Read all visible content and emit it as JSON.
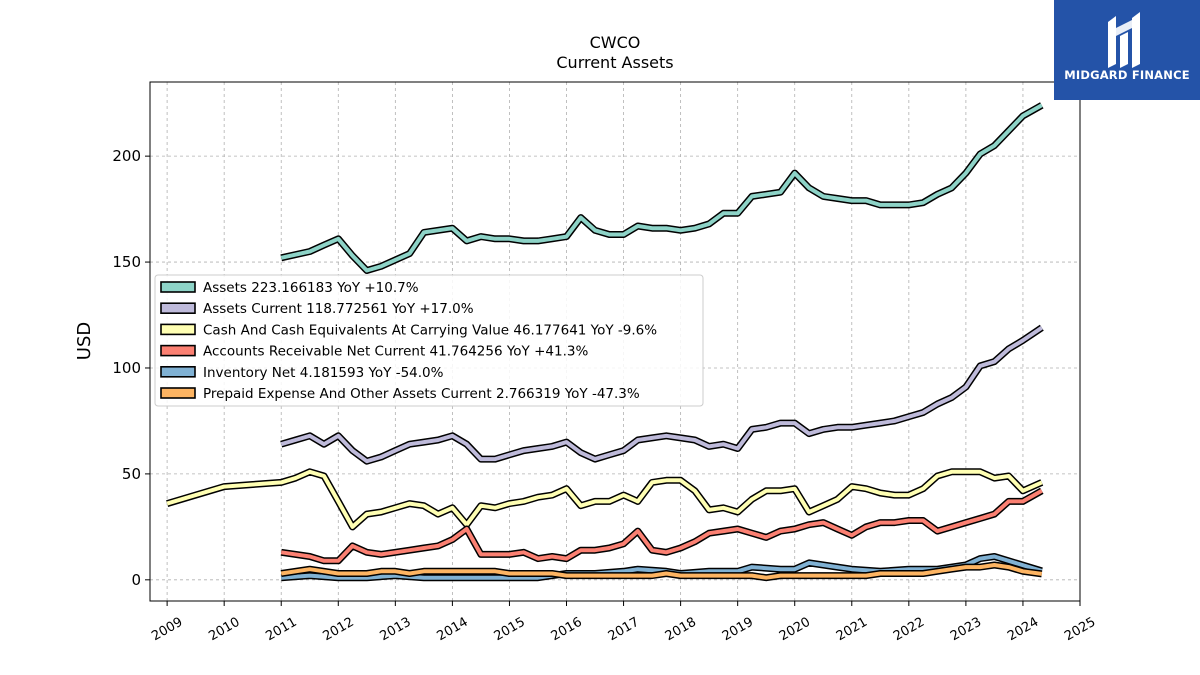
{
  "logo": {
    "text": "MIDGARD FINANCE"
  },
  "chart_data": {
    "type": "line",
    "title": "CWCO",
    "subtitle": "Current  Assets",
    "ylabel": "USD",
    "xlabel": "",
    "xlim": [
      2008.7,
      2025.0
    ],
    "ylim": [
      -10,
      235
    ],
    "yticks": [
      0,
      50,
      100,
      150,
      200
    ],
    "xticks": [
      "2009",
      "2010",
      "2011",
      "2012",
      "2013",
      "2014",
      "2015",
      "2016",
      "2017",
      "2018",
      "2019",
      "2020",
      "2021",
      "2022",
      "2023",
      "2024",
      "2025"
    ],
    "grid": true,
    "legend_position": "center-left",
    "series": [
      {
        "name": "Assets  223.166183 YoY +10.7%",
        "color": "#8dd3c7",
        "points": [
          [
            2011.0,
            152
          ],
          [
            2011.5,
            155
          ],
          [
            2011.75,
            158
          ],
          [
            2012.0,
            161
          ],
          [
            2012.25,
            153
          ],
          [
            2012.5,
            146
          ],
          [
            2012.75,
            148
          ],
          [
            2013.0,
            151
          ],
          [
            2013.25,
            154
          ],
          [
            2013.5,
            164
          ],
          [
            2013.75,
            165
          ],
          [
            2014.0,
            166
          ],
          [
            2014.25,
            160
          ],
          [
            2014.5,
            162
          ],
          [
            2014.75,
            161
          ],
          [
            2015.0,
            161
          ],
          [
            2015.25,
            160
          ],
          [
            2015.5,
            160
          ],
          [
            2015.75,
            161
          ],
          [
            2016.0,
            162
          ],
          [
            2016.25,
            171
          ],
          [
            2016.5,
            165
          ],
          [
            2016.75,
            163
          ],
          [
            2017.0,
            163
          ],
          [
            2017.25,
            167
          ],
          [
            2017.5,
            166
          ],
          [
            2017.75,
            166
          ],
          [
            2018.0,
            165
          ],
          [
            2018.25,
            166
          ],
          [
            2018.5,
            168
          ],
          [
            2018.75,
            173
          ],
          [
            2019.0,
            173
          ],
          [
            2019.25,
            181
          ],
          [
            2019.5,
            182
          ],
          [
            2019.75,
            183
          ],
          [
            2020.0,
            192
          ],
          [
            2020.25,
            185
          ],
          [
            2020.5,
            181
          ],
          [
            2020.75,
            180
          ],
          [
            2021.0,
            179
          ],
          [
            2021.25,
            179
          ],
          [
            2021.5,
            177
          ],
          [
            2021.75,
            177
          ],
          [
            2022.0,
            177
          ],
          [
            2022.25,
            178
          ],
          [
            2022.5,
            182
          ],
          [
            2022.75,
            185
          ],
          [
            2023.0,
            192
          ],
          [
            2023.25,
            201
          ],
          [
            2023.5,
            205
          ],
          [
            2023.75,
            212
          ],
          [
            2024.0,
            219
          ],
          [
            2024.33,
            224
          ]
        ]
      },
      {
        "name": "Assets Current  118.772561 YoY +17.0%",
        "color": "#bebada",
        "points": [
          [
            2011.0,
            64
          ],
          [
            2011.25,
            66
          ],
          [
            2011.5,
            68
          ],
          [
            2011.75,
            64
          ],
          [
            2012.0,
            68
          ],
          [
            2012.25,
            61
          ],
          [
            2012.5,
            56
          ],
          [
            2012.75,
            58
          ],
          [
            2013.0,
            61
          ],
          [
            2013.25,
            64
          ],
          [
            2013.5,
            65
          ],
          [
            2013.75,
            66
          ],
          [
            2014.0,
            68
          ],
          [
            2014.25,
            64
          ],
          [
            2014.5,
            57
          ],
          [
            2014.75,
            57
          ],
          [
            2015.0,
            59
          ],
          [
            2015.25,
            61
          ],
          [
            2015.5,
            62
          ],
          [
            2015.75,
            63
          ],
          [
            2016.0,
            65
          ],
          [
            2016.25,
            60
          ],
          [
            2016.5,
            57
          ],
          [
            2016.75,
            59
          ],
          [
            2017.0,
            61
          ],
          [
            2017.25,
            66
          ],
          [
            2017.5,
            67
          ],
          [
            2017.75,
            68
          ],
          [
            2018.0,
            67
          ],
          [
            2018.25,
            66
          ],
          [
            2018.5,
            63
          ],
          [
            2018.75,
            64
          ],
          [
            2019.0,
            62
          ],
          [
            2019.25,
            71
          ],
          [
            2019.5,
            72
          ],
          [
            2019.75,
            74
          ],
          [
            2020.0,
            74
          ],
          [
            2020.25,
            69
          ],
          [
            2020.5,
            71
          ],
          [
            2020.75,
            72
          ],
          [
            2021.0,
            72
          ],
          [
            2021.25,
            73
          ],
          [
            2021.5,
            74
          ],
          [
            2021.75,
            75
          ],
          [
            2022.0,
            77
          ],
          [
            2022.25,
            79
          ],
          [
            2022.5,
            83
          ],
          [
            2022.75,
            86
          ],
          [
            2023.0,
            91
          ],
          [
            2023.25,
            101
          ],
          [
            2023.5,
            103
          ],
          [
            2023.75,
            109
          ],
          [
            2024.0,
            113
          ],
          [
            2024.33,
            119
          ]
        ]
      },
      {
        "name": "Cash And Cash Equivalents At Carrying Value  46.177641 YoY -9.6%",
        "color": "#ffffb3",
        "points": [
          [
            2009.0,
            36
          ],
          [
            2009.5,
            40
          ],
          [
            2010.0,
            44
          ],
          [
            2010.5,
            45
          ],
          [
            2011.0,
            46
          ],
          [
            2011.25,
            48
          ],
          [
            2011.5,
            51
          ],
          [
            2011.75,
            49
          ],
          [
            2012.0,
            37
          ],
          [
            2012.25,
            25
          ],
          [
            2012.5,
            31
          ],
          [
            2012.75,
            32
          ],
          [
            2013.0,
            34
          ],
          [
            2013.25,
            36
          ],
          [
            2013.5,
            35
          ],
          [
            2013.75,
            31
          ],
          [
            2014.0,
            34
          ],
          [
            2014.25,
            26
          ],
          [
            2014.5,
            35
          ],
          [
            2014.75,
            34
          ],
          [
            2015.0,
            36
          ],
          [
            2015.25,
            37
          ],
          [
            2015.5,
            39
          ],
          [
            2015.75,
            40
          ],
          [
            2016.0,
            43
          ],
          [
            2016.25,
            35
          ],
          [
            2016.5,
            37
          ],
          [
            2016.75,
            37
          ],
          [
            2017.0,
            40
          ],
          [
            2017.25,
            37
          ],
          [
            2017.5,
            46
          ],
          [
            2017.75,
            47
          ],
          [
            2018.0,
            47
          ],
          [
            2018.25,
            42
          ],
          [
            2018.5,
            33
          ],
          [
            2018.75,
            34
          ],
          [
            2019.0,
            32
          ],
          [
            2019.25,
            38
          ],
          [
            2019.5,
            42
          ],
          [
            2019.75,
            42
          ],
          [
            2020.0,
            43
          ],
          [
            2020.25,
            32
          ],
          [
            2020.5,
            35
          ],
          [
            2020.75,
            38
          ],
          [
            2021.0,
            44
          ],
          [
            2021.25,
            43
          ],
          [
            2021.5,
            41
          ],
          [
            2021.75,
            40
          ],
          [
            2022.0,
            40
          ],
          [
            2022.25,
            43
          ],
          [
            2022.5,
            49
          ],
          [
            2022.75,
            51
          ],
          [
            2023.0,
            51
          ],
          [
            2023.25,
            51
          ],
          [
            2023.5,
            48
          ],
          [
            2023.75,
            49
          ],
          [
            2024.0,
            42
          ],
          [
            2024.33,
            46
          ]
        ]
      },
      {
        "name": "Accounts Receivable Net Current  41.764256 YoY +41.3%",
        "color": "#fb8072",
        "points": [
          [
            2011.0,
            13
          ],
          [
            2011.5,
            11
          ],
          [
            2011.75,
            9
          ],
          [
            2012.0,
            9
          ],
          [
            2012.25,
            16
          ],
          [
            2012.5,
            13
          ],
          [
            2012.75,
            12
          ],
          [
            2013.0,
            13
          ],
          [
            2013.25,
            14
          ],
          [
            2013.5,
            15
          ],
          [
            2013.75,
            16
          ],
          [
            2014.0,
            19
          ],
          [
            2014.25,
            24
          ],
          [
            2014.5,
            12
          ],
          [
            2014.75,
            12
          ],
          [
            2015.0,
            12
          ],
          [
            2015.25,
            13
          ],
          [
            2015.5,
            10
          ],
          [
            2015.75,
            11
          ],
          [
            2016.0,
            10
          ],
          [
            2016.25,
            14
          ],
          [
            2016.5,
            14
          ],
          [
            2016.75,
            15
          ],
          [
            2017.0,
            17
          ],
          [
            2017.25,
            23
          ],
          [
            2017.5,
            14
          ],
          [
            2017.75,
            13
          ],
          [
            2018.0,
            15
          ],
          [
            2018.25,
            18
          ],
          [
            2018.5,
            22
          ],
          [
            2018.75,
            23
          ],
          [
            2019.0,
            24
          ],
          [
            2019.25,
            22
          ],
          [
            2019.5,
            20
          ],
          [
            2019.75,
            23
          ],
          [
            2020.0,
            24
          ],
          [
            2020.25,
            26
          ],
          [
            2020.5,
            27
          ],
          [
            2020.75,
            24
          ],
          [
            2021.0,
            21
          ],
          [
            2021.25,
            25
          ],
          [
            2021.5,
            27
          ],
          [
            2021.75,
            27
          ],
          [
            2022.0,
            28
          ],
          [
            2022.25,
            28
          ],
          [
            2022.5,
            23
          ],
          [
            2022.75,
            25
          ],
          [
            2023.0,
            27
          ],
          [
            2023.25,
            29
          ],
          [
            2023.5,
            31
          ],
          [
            2023.75,
            37
          ],
          [
            2024.0,
            37
          ],
          [
            2024.33,
            42
          ]
        ]
      },
      {
        "name": "Inventory Net  4.181593 YoY -54.0%",
        "color": "#80b1d3",
        "points": [
          [
            2011.0,
            1
          ],
          [
            2011.5,
            2
          ],
          [
            2012.0,
            1
          ],
          [
            2012.5,
            1
          ],
          [
            2013.0,
            2
          ],
          [
            2013.5,
            1
          ],
          [
            2014.0,
            1
          ],
          [
            2014.5,
            1
          ],
          [
            2015.0,
            1
          ],
          [
            2015.5,
            1
          ],
          [
            2016.0,
            3
          ],
          [
            2016.5,
            3
          ],
          [
            2017.0,
            4
          ],
          [
            2017.25,
            5
          ],
          [
            2017.75,
            4
          ],
          [
            2018.0,
            3
          ],
          [
            2018.5,
            4
          ],
          [
            2019.0,
            4
          ],
          [
            2019.25,
            6
          ],
          [
            2019.75,
            5
          ],
          [
            2020.0,
            5
          ],
          [
            2020.25,
            8
          ],
          [
            2020.75,
            6
          ],
          [
            2021.0,
            5
          ],
          [
            2021.5,
            4
          ],
          [
            2022.0,
            5
          ],
          [
            2022.5,
            5
          ],
          [
            2023.0,
            7
          ],
          [
            2023.25,
            10
          ],
          [
            2023.5,
            11
          ],
          [
            2024.33,
            4.2
          ]
        ]
      },
      {
        "name": "Prepaid Expense And Other Assets Current  2.766319 YoY -47.3%",
        "color": "#fdb462",
        "points": [
          [
            2011.0,
            3
          ],
          [
            2011.5,
            5
          ],
          [
            2011.75,
            4
          ],
          [
            2012.0,
            3
          ],
          [
            2012.25,
            3
          ],
          [
            2012.5,
            3
          ],
          [
            2012.75,
            4
          ],
          [
            2013.0,
            4
          ],
          [
            2013.25,
            3
          ],
          [
            2013.5,
            4
          ],
          [
            2013.75,
            4
          ],
          [
            2014.0,
            4
          ],
          [
            2014.25,
            4
          ],
          [
            2014.5,
            4
          ],
          [
            2014.75,
            4
          ],
          [
            2015.0,
            3
          ],
          [
            2015.25,
            3
          ],
          [
            2015.5,
            3
          ],
          [
            2015.75,
            3
          ],
          [
            2016.0,
            2
          ],
          [
            2016.25,
            2
          ],
          [
            2016.5,
            2
          ],
          [
            2016.75,
            2
          ],
          [
            2017.0,
            2
          ],
          [
            2017.25,
            2
          ],
          [
            2017.5,
            2
          ],
          [
            2017.75,
            3
          ],
          [
            2018.0,
            2
          ],
          [
            2018.25,
            2
          ],
          [
            2018.5,
            2
          ],
          [
            2018.75,
            2
          ],
          [
            2019.0,
            2
          ],
          [
            2019.25,
            2
          ],
          [
            2019.5,
            1
          ],
          [
            2019.75,
            2
          ],
          [
            2020.0,
            2
          ],
          [
            2020.25,
            2
          ],
          [
            2020.5,
            2
          ],
          [
            2020.75,
            2
          ],
          [
            2021.0,
            2
          ],
          [
            2021.25,
            2
          ],
          [
            2021.5,
            3
          ],
          [
            2021.75,
            3
          ],
          [
            2022.0,
            3
          ],
          [
            2022.25,
            3
          ],
          [
            2022.5,
            4
          ],
          [
            2022.75,
            5
          ],
          [
            2023.0,
            6
          ],
          [
            2023.25,
            6
          ],
          [
            2023.5,
            7
          ],
          [
            2023.75,
            6
          ],
          [
            2024.0,
            4
          ],
          [
            2024.33,
            2.8
          ]
        ]
      }
    ]
  }
}
